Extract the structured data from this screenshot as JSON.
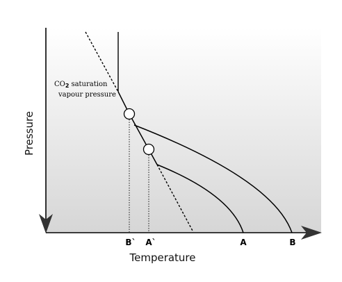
{
  "axes": {
    "x_label": "Temperature",
    "y_label": "Pressure"
  },
  "annotation": {
    "line1_prefix": "CO",
    "line1_subscript": "2",
    "line1_suffix": "saturation",
    "line2": "vapour pressure"
  },
  "tick_labels": {
    "b_prime": "B`",
    "a_prime": "A`",
    "a": "A",
    "b": "B"
  },
  "colors": {
    "ink": "#000000",
    "gradient_top": "#ffffff",
    "gradient_bottom": "#d6d6d6"
  }
}
